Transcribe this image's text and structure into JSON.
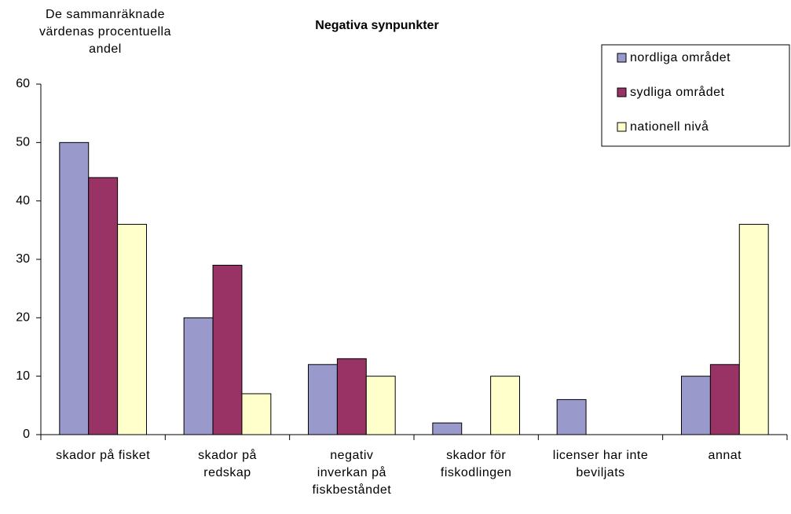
{
  "chart_data": {
    "type": "bar",
    "title": "Negativa synpunkter",
    "y_label": "De sammanräknade värdenas procentuella andel",
    "categories": [
      "skador på fisket",
      "skador på redskap",
      "negativ inverkan på fiskbeståndet",
      "skador för fiskodlingen",
      "licenser har inte beviljats",
      "annat"
    ],
    "series": [
      {
        "name": "nordliga området",
        "color": "#9999cc",
        "values": [
          50,
          20,
          12,
          2,
          6,
          10
        ]
      },
      {
        "name": "sydliga området",
        "color": "#993366",
        "values": [
          44,
          29,
          13,
          null,
          null,
          12
        ]
      },
      {
        "name": "nationell nivå",
        "color": "#ffffcc",
        "values": [
          36,
          7,
          10,
          10,
          null,
          36
        ]
      }
    ],
    "ylim": [
      0,
      60
    ],
    "yticks": [
      0,
      10,
      20,
      30,
      40,
      50,
      60
    ],
    "legend": "upper right",
    "grid": false
  }
}
